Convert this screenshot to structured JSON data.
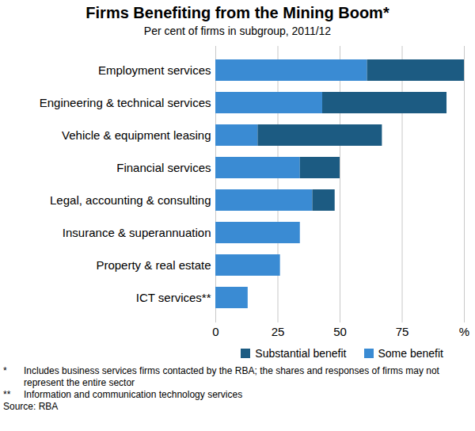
{
  "chart_data": {
    "type": "bar",
    "title": "Firms Benefiting from the Mining Boom*",
    "subtitle": "Per cent of firms in subgroup, 2011/12",
    "orientation": "horizontal",
    "stacked": true,
    "grid": true,
    "legend": "bottom",
    "categories": [
      "Employment services",
      "Engineering & technical services",
      "Vehicle & equipment leasing",
      "Financial services",
      "Legal, accounting & consulting",
      "Insurance & superannuation",
      "Property & real estate",
      "ICT services**"
    ],
    "series": [
      {
        "name": "Some benefit",
        "color": "#3a8bd3",
        "values": [
          61,
          43,
          17,
          34,
          39,
          34,
          26,
          13
        ]
      },
      {
        "name": "Substantial benefit",
        "color": "#1c5b82",
        "values": [
          39,
          50,
          50,
          16,
          9,
          0,
          0,
          0
        ]
      }
    ],
    "xlim": [
      0,
      100
    ],
    "xticks": [
      0,
      25,
      50,
      75,
      {
        "value": 100,
        "label": "%"
      }
    ],
    "notes": [
      {
        "mark": "*",
        "text": "Includes business services firms contacted by the RBA; the shares and responses of firms may not represent the entire sector"
      },
      {
        "mark": "**",
        "text": "Information and communication technology services"
      }
    ],
    "source": "Source: RBA"
  }
}
